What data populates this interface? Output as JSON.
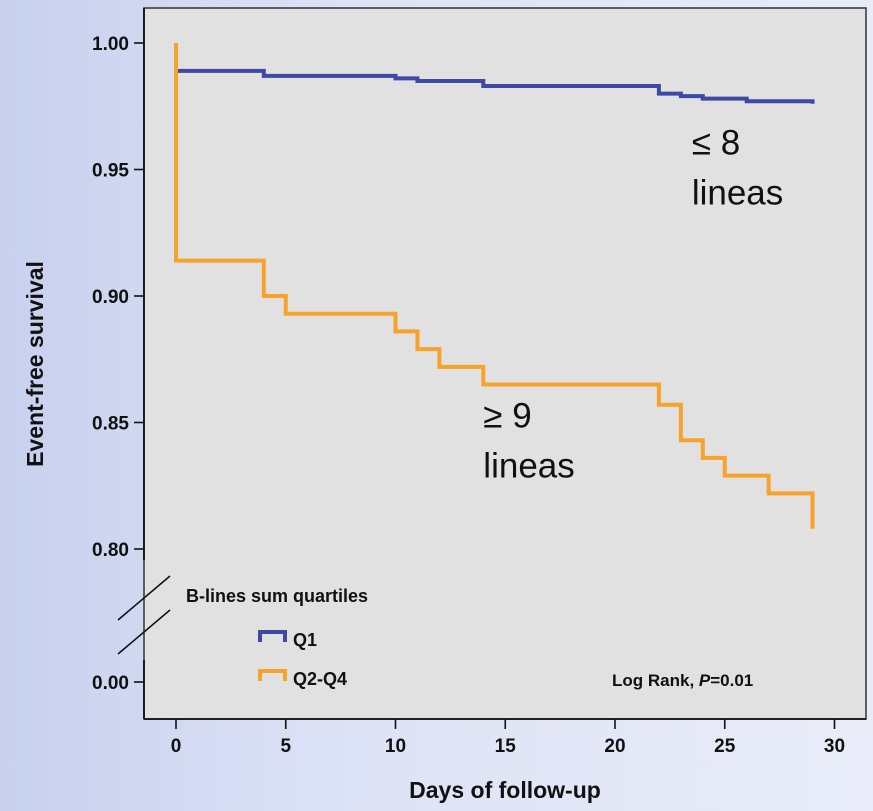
{
  "chart_data": {
    "type": "line",
    "xlabel": "Days of follow-up",
    "ylabel": "Event-free survival",
    "xlim": [
      -2,
      31
    ],
    "x_ticks": [
      "0",
      "5",
      "10",
      "15",
      "20",
      "25",
      "30"
    ],
    "y_ticks": [
      "1.00",
      "0.95",
      "0.90",
      "0.85",
      "0.80",
      "0.00"
    ],
    "y_break": true,
    "grid": false,
    "legend": {
      "title": "B-lines sum quartiles",
      "placement": "bottom-left",
      "entries": [
        {
          "label": "Q1",
          "color": "#3f48a5"
        },
        {
          "label": "Q2-Q4",
          "color": "#f7a32b"
        }
      ]
    },
    "series": [
      {
        "name": "Q1",
        "color": "#3f48a5",
        "steps": [
          [
            0,
            0.989
          ],
          [
            4,
            0.987
          ],
          [
            10,
            0.986
          ],
          [
            11,
            0.985
          ],
          [
            14,
            0.983
          ],
          [
            22,
            0.98
          ],
          [
            23,
            0.979
          ],
          [
            24,
            0.978
          ],
          [
            26,
            0.977
          ],
          [
            29,
            0.976
          ]
        ],
        "end_x": 29
      },
      {
        "name": "Q2-Q4",
        "color": "#f7a32b",
        "steps": [
          [
            0,
            1.0
          ],
          [
            0,
            0.914
          ],
          [
            4,
            0.9
          ],
          [
            5,
            0.893
          ],
          [
            10,
            0.886
          ],
          [
            11,
            0.879
          ],
          [
            12,
            0.872
          ],
          [
            14,
            0.865
          ],
          [
            22,
            0.857
          ],
          [
            23,
            0.843
          ],
          [
            24,
            0.836
          ],
          [
            25,
            0.829
          ],
          [
            27,
            0.822
          ],
          [
            29,
            0.808
          ]
        ],
        "end_x": 29
      }
    ],
    "annotations": [
      {
        "line1": "≤ 8",
        "line2": "lineas",
        "x": 23.5,
        "y": 0.952
      },
      {
        "line1": "≥ 9",
        "line2": "lineas",
        "x": 14,
        "y": 0.844
      }
    ],
    "log_rank_prefix": "Log Rank, ",
    "log_rank_p": "P",
    "log_rank_value": "=0.01",
    "colors": {
      "plot_bg": "#e1e1e1",
      "q1": "#3f48a5",
      "q2q4": "#f7a32b"
    }
  }
}
